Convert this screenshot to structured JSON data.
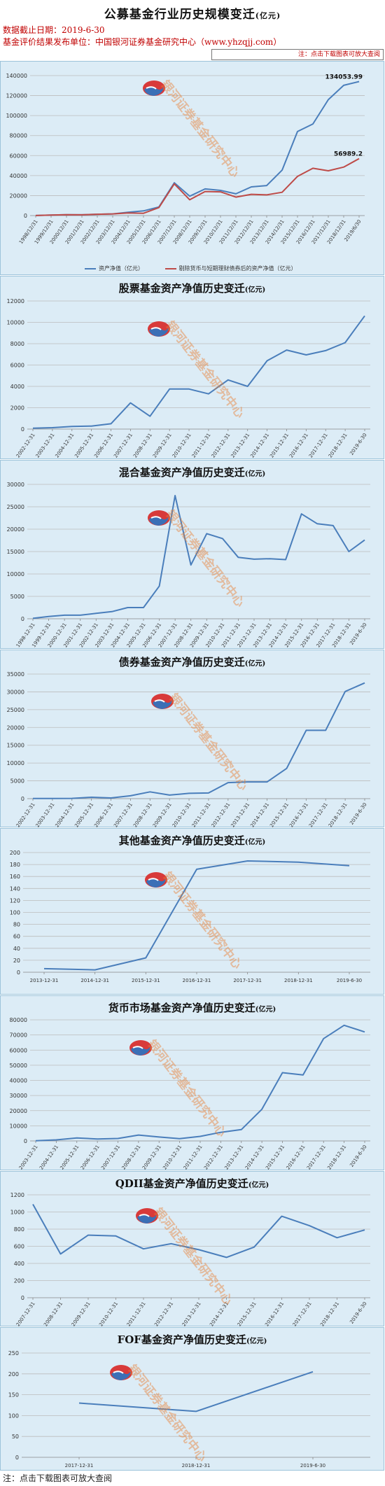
{
  "header": {
    "title": "公募基金行业历史规模变迁",
    "title_unit": "(亿元)",
    "date_label": "数据截止日期：2019-6-30",
    "source_label": "基金评价结果发布单位：中国银河证券基金研究中心（www.yhzqjj.com）",
    "notice": "注：点击下载图表可放大查阅"
  },
  "watermark_text": "银河证券基金研究中心",
  "footer": {
    "note": "注：点击下载图表可放大查阅"
  },
  "colors": {
    "series_blue": "#4a7ebb",
    "series_red": "#be4b48",
    "panel_bg": "#dcecf6",
    "grid": "#bcbcbc"
  },
  "chart_data": [
    {
      "id": "total",
      "type": "line",
      "title": "",
      "x": [
        "1998/12/31",
        "1999/12/31",
        "2000/12/31",
        "2001/12/31",
        "2002/12/31",
        "2003/12/31",
        "2004/12/31",
        "2005/12/31",
        "2006/12/31",
        "2007/12/31",
        "2008/12/31",
        "2009/12/31",
        "2010/12/31",
        "2011/12/31",
        "2012/12/31",
        "2013/12/31",
        "2014/12/31",
        "2015/12/31",
        "2016/12/31",
        "2017/12/31",
        "2018/12/31",
        "2019/6/30"
      ],
      "yticks": [
        0,
        20000,
        40000,
        60000,
        80000,
        100000,
        120000,
        140000
      ],
      "ylim": [
        0,
        140000
      ],
      "series": [
        {
          "name": "资产净值（亿元）",
          "color": "#4a7ebb",
          "values": [
            100,
            500,
            850,
            800,
            1300,
            1700,
            3300,
            4700,
            8600,
            32800,
            19400,
            26700,
            25200,
            21800,
            28700,
            30000,
            45400,
            84100,
            91600,
            115900,
            130300,
            134053.99
          ],
          "end_label": "134053.99"
        },
        {
          "name": "剔除货币与短期理财债券后的资产净值（亿元）",
          "color": "#be4b48",
          "values": [
            100,
            500,
            850,
            800,
            1300,
            1700,
            2600,
            2300,
            8000,
            31700,
            15800,
            24100,
            23700,
            18500,
            21300,
            20700,
            23300,
            39200,
            47300,
            44800,
            48500,
            56989.2
          ],
          "end_label": "56989.2"
        }
      ],
      "legend": "bottom"
    },
    {
      "id": "stock",
      "type": "line",
      "title": "股票基金资产净值历史变迁",
      "title_unit": "(亿元)",
      "x": [
        "2002-12-31",
        "2003-12-31",
        "2004-12-31",
        "2005-12-31",
        "2006-12-31",
        "2007-12-31",
        "2008-12-31",
        "2009-12-31",
        "2010-12-31",
        "2011-12-31",
        "2012-12-31",
        "2013-12-31",
        "2014-12-31",
        "2015-12-31",
        "2016-12-31",
        "2017-12-31",
        "2018-12-31",
        "2019-6-30"
      ],
      "yticks": [
        0,
        2000,
        4000,
        6000,
        8000,
        10000,
        12000
      ],
      "ylim": [
        0,
        12000
      ],
      "series": [
        {
          "name": "",
          "color": "#4a7ebb",
          "values": [
            80,
            130,
            250,
            280,
            500,
            2450,
            1200,
            3750,
            3750,
            3300,
            4600,
            4000,
            6400,
            7400,
            6950,
            7350,
            8100,
            10600
          ]
        }
      ]
    },
    {
      "id": "hybrid",
      "type": "line",
      "title": "混合基金资产净值历史变迁",
      "title_unit": "(亿元)",
      "x": [
        "1998-12-31",
        "1999-12-31",
        "2000-12-31",
        "2001-12-31",
        "2002-12-31",
        "2003-12-31",
        "2004-12-31",
        "2005-12-31",
        "2006-12-31",
        "2007-12-31",
        "2008-12-31",
        "2009-12-31",
        "2010-12-31",
        "2011-12-31",
        "2012-12-31",
        "2013-12-31",
        "2014-12-31",
        "2015-12-31",
        "2016-12-31",
        "2017-12-31",
        "2018-12-31",
        "2019-6-30"
      ],
      "yticks": [
        0,
        5000,
        10000,
        15000,
        20000,
        25000,
        30000
      ],
      "ylim": [
        0,
        30000
      ],
      "series": [
        {
          "name": "",
          "color": "#4a7ebb",
          "values": [
            100,
            500,
            800,
            800,
            1200,
            1600,
            2500,
            2500,
            7300,
            27500,
            12000,
            19000,
            17900,
            13700,
            13300,
            13400,
            13200,
            23400,
            21200,
            20800,
            15000,
            17600
          ]
        }
      ]
    },
    {
      "id": "bond",
      "type": "line",
      "title": "债券基金资产净值历史变迁",
      "title_unit": "(亿元)",
      "x": [
        "2002-12-31",
        "2003-12-31",
        "2004-12-31",
        "2005-12-31",
        "2006-12-31",
        "2007-12-31",
        "2008-12-31",
        "2009-12-31",
        "2010-12-31",
        "2011-12-31",
        "2012-12-31",
        "2013-12-31",
        "2014-12-31",
        "2015-12-31",
        "2016-12-31",
        "2017-12-31",
        "2018-12-31",
        "2019-6-30"
      ],
      "yticks": [
        0,
        5000,
        10000,
        15000,
        20000,
        25000,
        30000,
        35000
      ],
      "ylim": [
        0,
        35000
      ],
      "series": [
        {
          "name": "",
          "color": "#4a7ebb",
          "values": [
            30,
            60,
            80,
            400,
            200,
            800,
            1900,
            1000,
            1500,
            1600,
            4500,
            4700,
            4700,
            8500,
            19200,
            19200,
            30100,
            32500
          ]
        }
      ]
    },
    {
      "id": "other",
      "type": "line",
      "title": "其他基金资产净值历史变迁",
      "title_unit": "(亿元)",
      "x": [
        "2013-12-31",
        "2014-12-31",
        "2015-12-31",
        "2016-12-31",
        "2017-12-31",
        "2018-12-31",
        "2019-6-30"
      ],
      "yticks": [
        0,
        20,
        40,
        60,
        80,
        100,
        120,
        140,
        160,
        180,
        200
      ],
      "ylim": [
        0,
        200
      ],
      "series": [
        {
          "name": "",
          "color": "#4a7ebb",
          "values": [
            6,
            4,
            24,
            172,
            186,
            184,
            178
          ]
        }
      ]
    },
    {
      "id": "money",
      "type": "line",
      "title": "货币市场基金资产净值历史变迁",
      "title_unit": "(亿元)",
      "x": [
        "2003-12-31",
        "2004-12-31",
        "2005-12-31",
        "2006-12-31",
        "2007-12-31",
        "2008-12-31",
        "2009-12-31",
        "2010-12-31",
        "2011-12-31",
        "2012-12-31",
        "2013-12-31",
        "2014-12-31",
        "2015-12-31",
        "2016-12-31",
        "2017-12-31",
        "2018-12-31",
        "2019-6-30"
      ],
      "yticks": [
        0,
        10000,
        20000,
        30000,
        40000,
        50000,
        60000,
        70000,
        80000
      ],
      "ylim": [
        0,
        80000
      ],
      "series": [
        {
          "name": "",
          "color": "#4a7ebb",
          "values": [
            100,
            700,
            2000,
            1300,
            1600,
            3900,
            2600,
            1500,
            3000,
            5700,
            7500,
            20900,
            45100,
            43600,
            67600,
            76400,
            72000
          ]
        }
      ]
    },
    {
      "id": "qdii",
      "type": "line",
      "title": "QDII基金资产净值历史变迁",
      "title_unit": "(亿元)",
      "x": [
        "2007-12-31",
        "2008-12-31",
        "2009-12-31",
        "2010-12-31",
        "2011-12-31",
        "2012-12-31",
        "2013-12-31",
        "2014-12-31",
        "2015-12-31",
        "2016-12-31",
        "2017-12-31",
        "2018-12-31",
        "2019-6-30"
      ],
      "yticks": [
        0,
        200,
        400,
        600,
        800,
        1000,
        1200
      ],
      "ylim": [
        0,
        1200
      ],
      "series": [
        {
          "name": "",
          "color": "#4a7ebb",
          "values": [
            1090,
            510,
            730,
            720,
            570,
            630,
            560,
            470,
            590,
            950,
            840,
            700,
            790
          ]
        }
      ]
    },
    {
      "id": "fof",
      "type": "line",
      "title": "FOF基金资产净值历史变迁",
      "title_unit": "(亿元)",
      "x": [
        "2017-12-31",
        "2018-12-31",
        "2019-6-30"
      ],
      "yticks": [
        0,
        50,
        100,
        150,
        200,
        250
      ],
      "ylim": [
        0,
        250
      ],
      "series": [
        {
          "name": "",
          "color": "#4a7ebb",
          "values": [
            130,
            110,
            205
          ]
        }
      ]
    }
  ]
}
